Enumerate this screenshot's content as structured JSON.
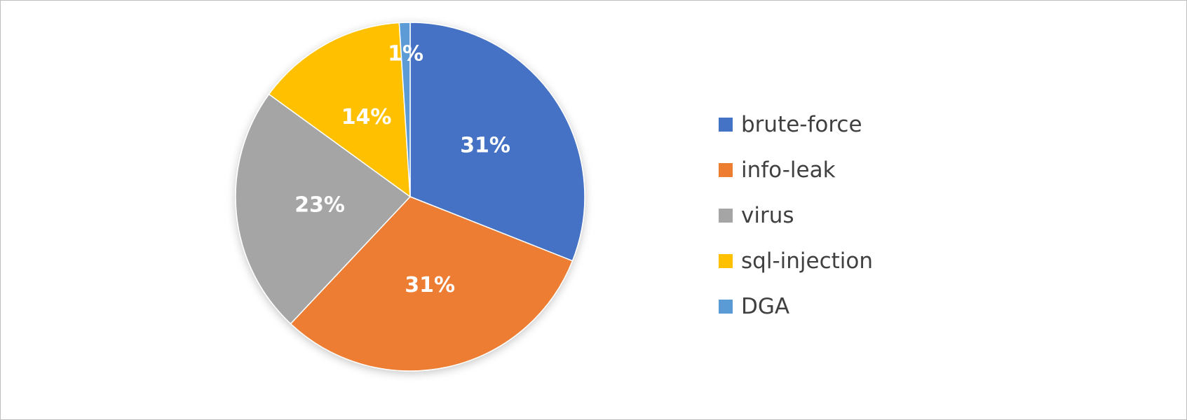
{
  "chart_data": {
    "type": "pie",
    "title": "",
    "categories": [
      "brute-force",
      "info-leak",
      "virus",
      "sql-injection",
      "DGA"
    ],
    "values": [
      31,
      31,
      23,
      14,
      1
    ],
    "labels": [
      "31%",
      "31%",
      "23%",
      "14%",
      "1%"
    ],
    "colors": [
      "#4472c4",
      "#ed7d31",
      "#a5a5a5",
      "#ffc000",
      "#5b9bd5"
    ],
    "legend_position": "right",
    "start_angle": "12 o'clock",
    "direction": "clockwise"
  }
}
